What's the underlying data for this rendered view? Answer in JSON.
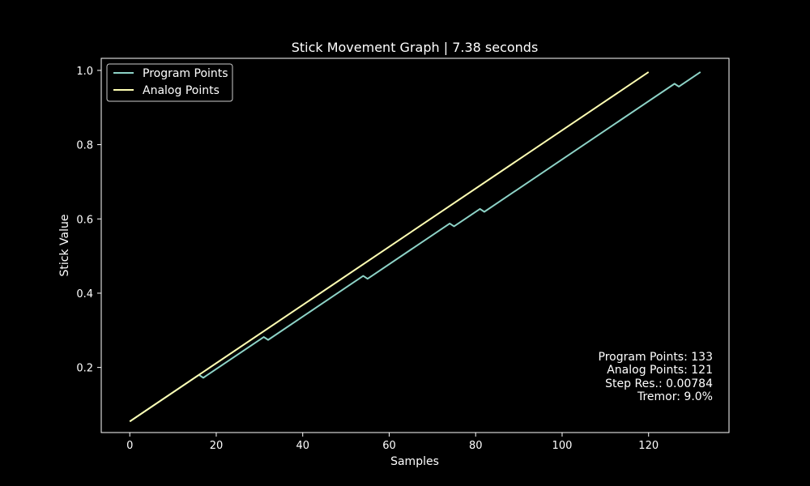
{
  "chart_data": {
    "type": "line",
    "title": "Stick Movement Graph | 7.38 seconds",
    "xlabel": "Samples",
    "ylabel": "Stick Value",
    "xlim": [
      -6.6,
      138.6
    ],
    "ylim": [
      0.0247,
      1.0325
    ],
    "x_ticks": [
      0,
      20,
      40,
      60,
      80,
      100,
      120
    ],
    "y_ticks": [
      0.2,
      0.4,
      0.6,
      0.8,
      1.0
    ],
    "grid": false,
    "legend_position": "top-left",
    "background": "#000000",
    "series": [
      {
        "name": "Program Points",
        "color": "#8dd3c7",
        "points": [
          [
            0,
            0.0546
          ],
          [
            16,
            0.18
          ],
          [
            17,
            0.1722
          ],
          [
            31,
            0.282
          ],
          [
            32,
            0.2742
          ],
          [
            54,
            0.4466
          ],
          [
            55,
            0.4388
          ],
          [
            74,
            0.5877
          ],
          [
            75,
            0.5799
          ],
          [
            81,
            0.6269
          ],
          [
            82,
            0.6191
          ],
          [
            126,
            0.9641
          ],
          [
            127,
            0.9563
          ],
          [
            132,
            0.9955
          ]
        ]
      },
      {
        "name": "Analog Points",
        "color": "#ffffb3",
        "points": [
          [
            0,
            0.0546
          ],
          [
            120,
            0.9955
          ]
        ]
      }
    ],
    "annotations": [
      "Program Points: 133",
      "Analog Points: 121",
      "Step Res.: 0.00784",
      "Tremor: 9.0%"
    ]
  }
}
